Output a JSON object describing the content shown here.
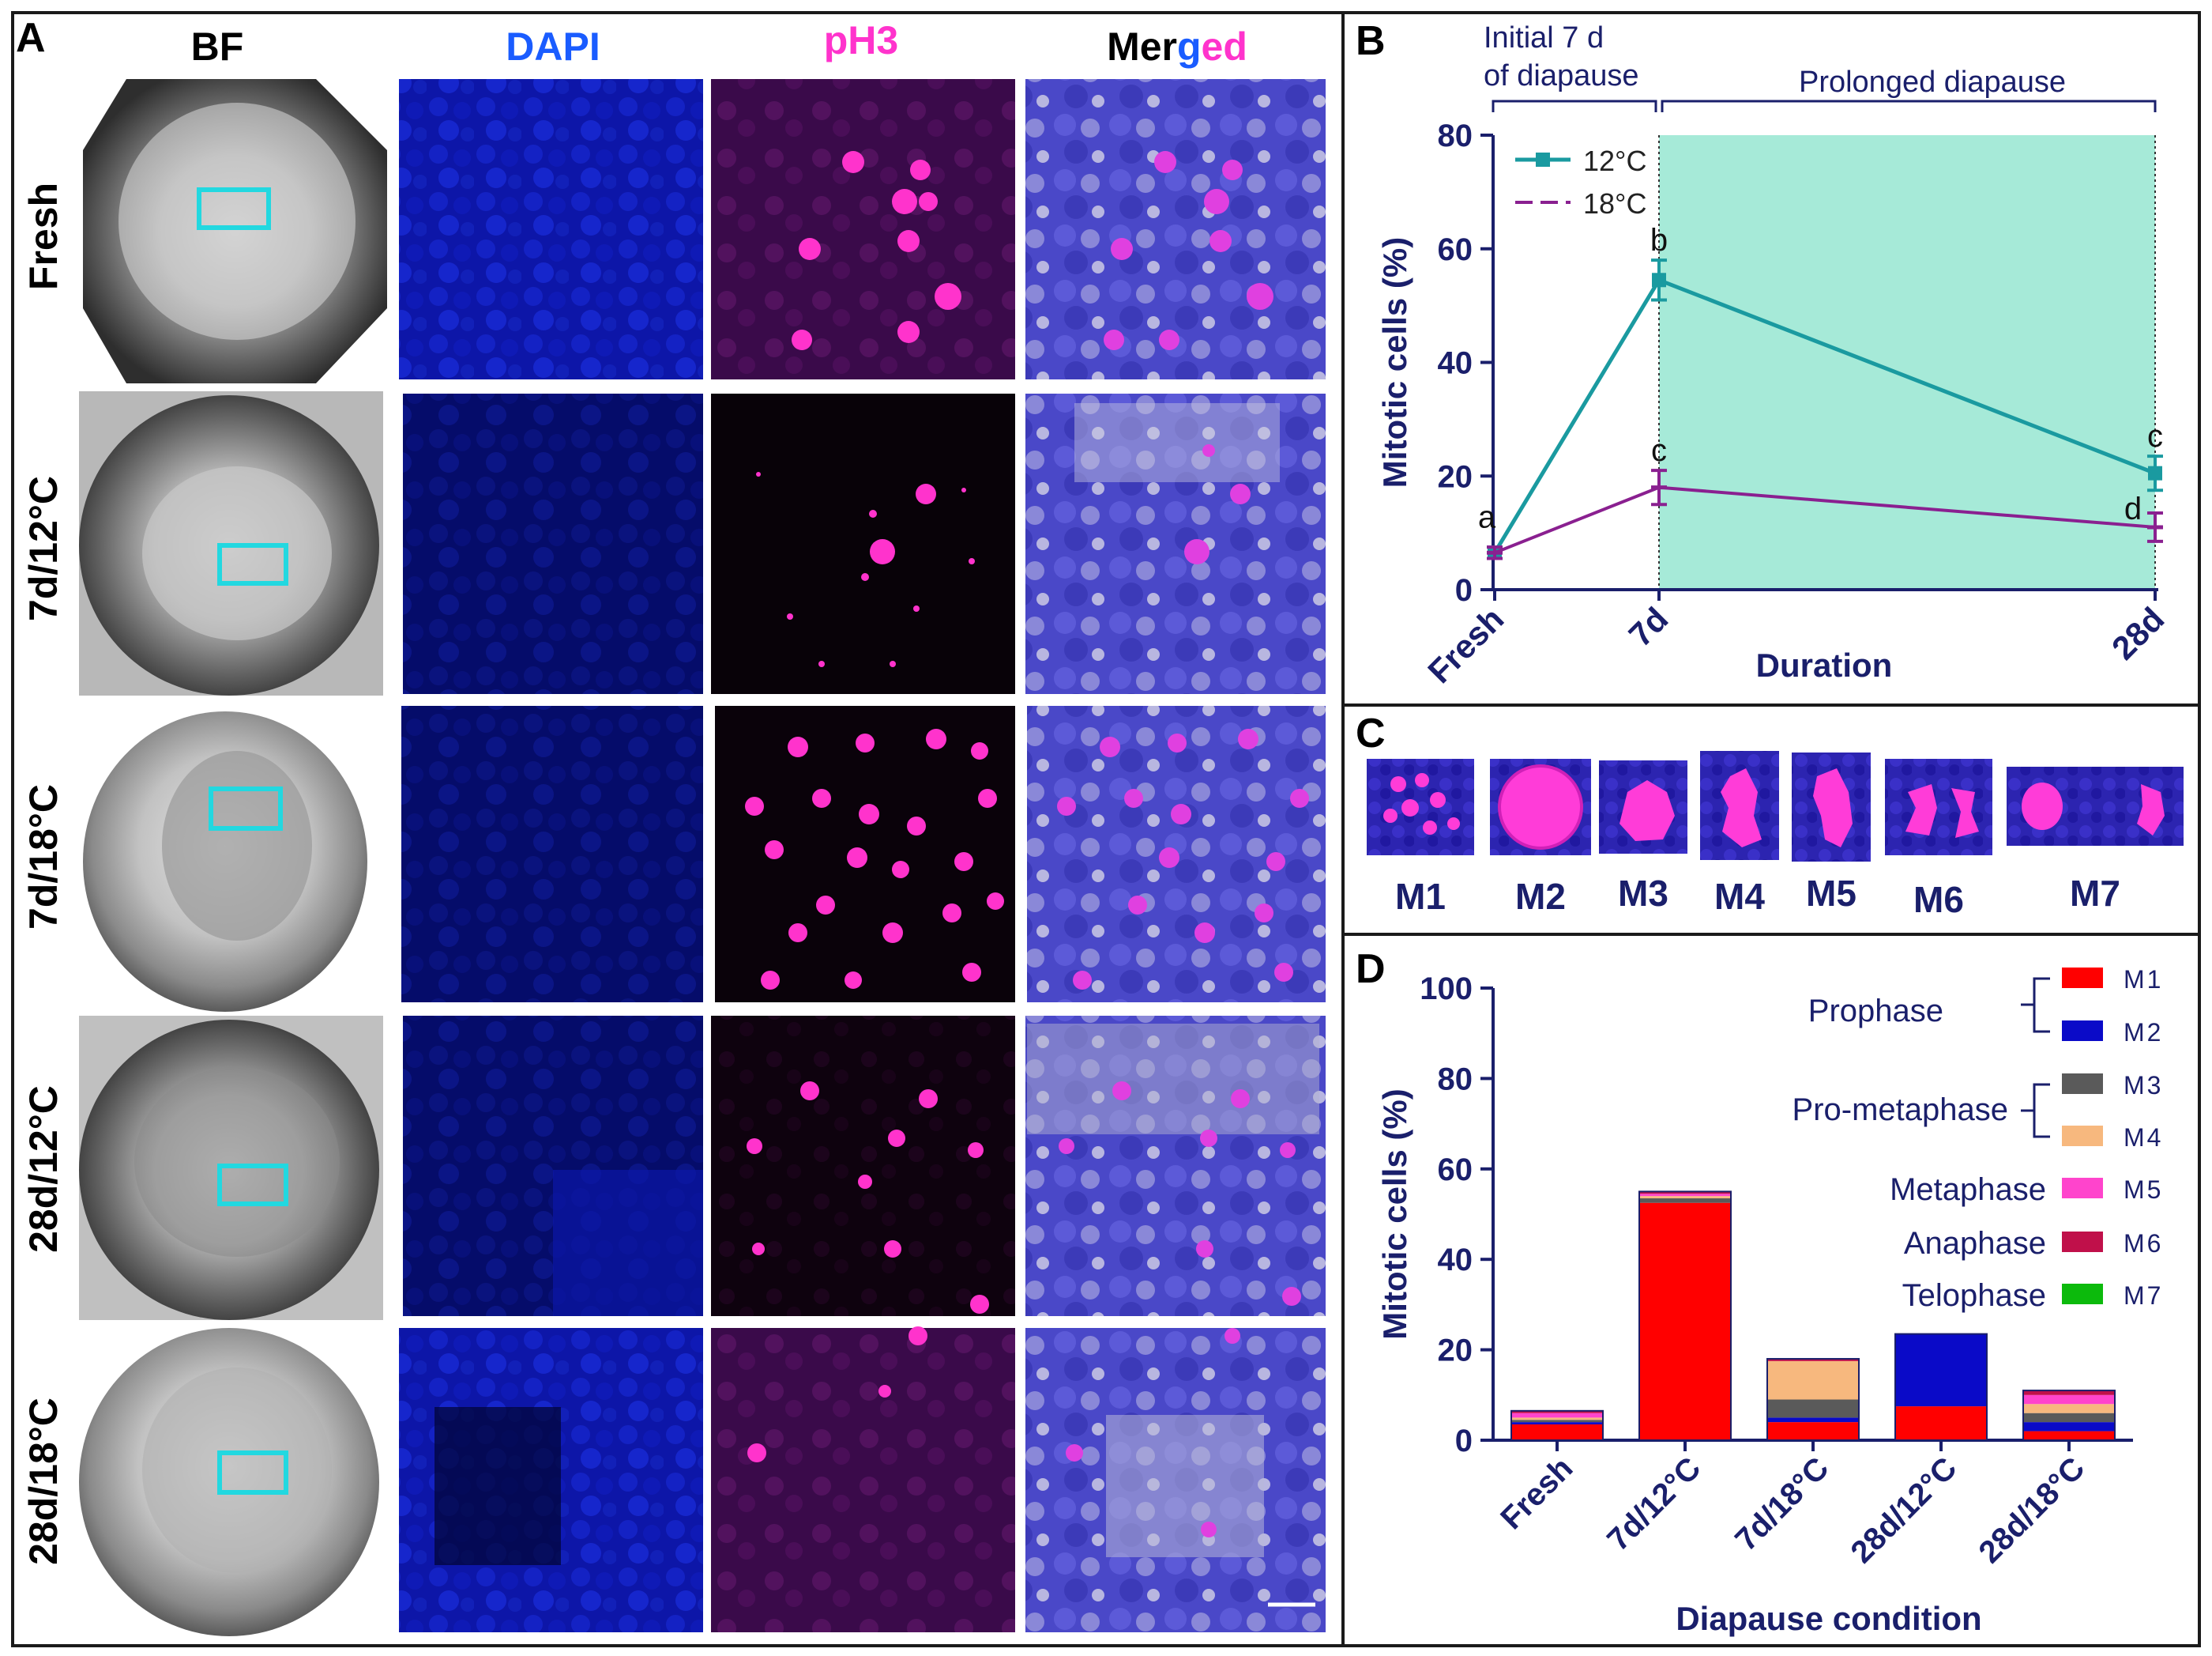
{
  "panels": {
    "a": "A",
    "b": "B",
    "c": "C",
    "d": "D"
  },
  "panel_a": {
    "columns": {
      "bf": "BF",
      "dapi": "DAPI",
      "ph3": "pH3",
      "merged_part1": "Mer",
      "merged_part2": "g",
      "merged_part3": "ed"
    },
    "rows": [
      "Fresh",
      "7d/12°C",
      "7d/18°C",
      "28d/12°C",
      "28d/18°C"
    ],
    "colors": {
      "dapi": "#1a5cff",
      "ph3": "#ff33cc",
      "box": "#22d8e0"
    }
  },
  "panel_b": {
    "bracket_left": [
      "Initial 7 d",
      "of diapause"
    ],
    "bracket_right": "Prolonged diapause",
    "shade_color": "#a6ead8",
    "chart_data": {
      "type": "line",
      "title": "",
      "xlabel": "Duration",
      "ylabel": "Mitotic cells (%)",
      "categories": [
        "Fresh",
        "7d",
        "28d"
      ],
      "ylim": [
        0,
        80
      ],
      "yticks": [
        "0",
        "20",
        "40",
        "60",
        "80"
      ],
      "series": [
        {
          "name": "12°C",
          "color": "#1a9aa0",
          "values": [
            6.5,
            54.5,
            20.5
          ],
          "errors": [
            1.0,
            3.5,
            3.0
          ],
          "letters": [
            "a",
            "b",
            "c"
          ]
        },
        {
          "name": "18°C",
          "color": "#8a2090",
          "values": [
            6.5,
            18,
            11
          ],
          "errors": [
            1.0,
            3.0,
            2.5
          ],
          "letters": [
            "",
            "c",
            "d"
          ]
        }
      ]
    }
  },
  "panel_c": {
    "labels": [
      "M1",
      "M2",
      "M3",
      "M4",
      "M5",
      "M6",
      "M7"
    ]
  },
  "panel_d": {
    "legend_groups": [
      "Prophase",
      "Pro-metaphase",
      "Metaphase",
      "Anaphase",
      "Telophase"
    ],
    "chart_data": {
      "type": "bar",
      "stacked": true,
      "title": "",
      "xlabel": "Diapause condition",
      "ylabel": "Mitotic cells (%)",
      "categories": [
        "Fresh",
        "7d/12°C",
        "7d/18°C",
        "28d/12°C",
        "28d/18°C"
      ],
      "ylim": [
        0,
        100
      ],
      "yticks": [
        "0",
        "20",
        "40",
        "60",
        "80",
        "100"
      ],
      "series": [
        {
          "name": "M1",
          "color": "#ff0000",
          "values": [
            3.5,
            52.5,
            4,
            7.5,
            2
          ]
        },
        {
          "name": "M2",
          "color": "#0a0ac8",
          "values": [
            0.5,
            0,
            1,
            16,
            2
          ]
        },
        {
          "name": "M3",
          "color": "#5a5a5a",
          "values": [
            0.5,
            1,
            4,
            0,
            2
          ]
        },
        {
          "name": "M4",
          "color": "#f7b87e",
          "values": [
            0.5,
            0.5,
            8.5,
            0,
            2
          ]
        },
        {
          "name": "M5",
          "color": "#ff44cc",
          "values": [
            1,
            0.5,
            0,
            0,
            2
          ]
        },
        {
          "name": "M6",
          "color": "#c0104a",
          "values": [
            0.5,
            0.5,
            0.5,
            0,
            1
          ]
        },
        {
          "name": "M7",
          "color": "#0cba0c",
          "values": [
            0,
            0,
            0,
            0,
            0
          ]
        }
      ]
    }
  }
}
